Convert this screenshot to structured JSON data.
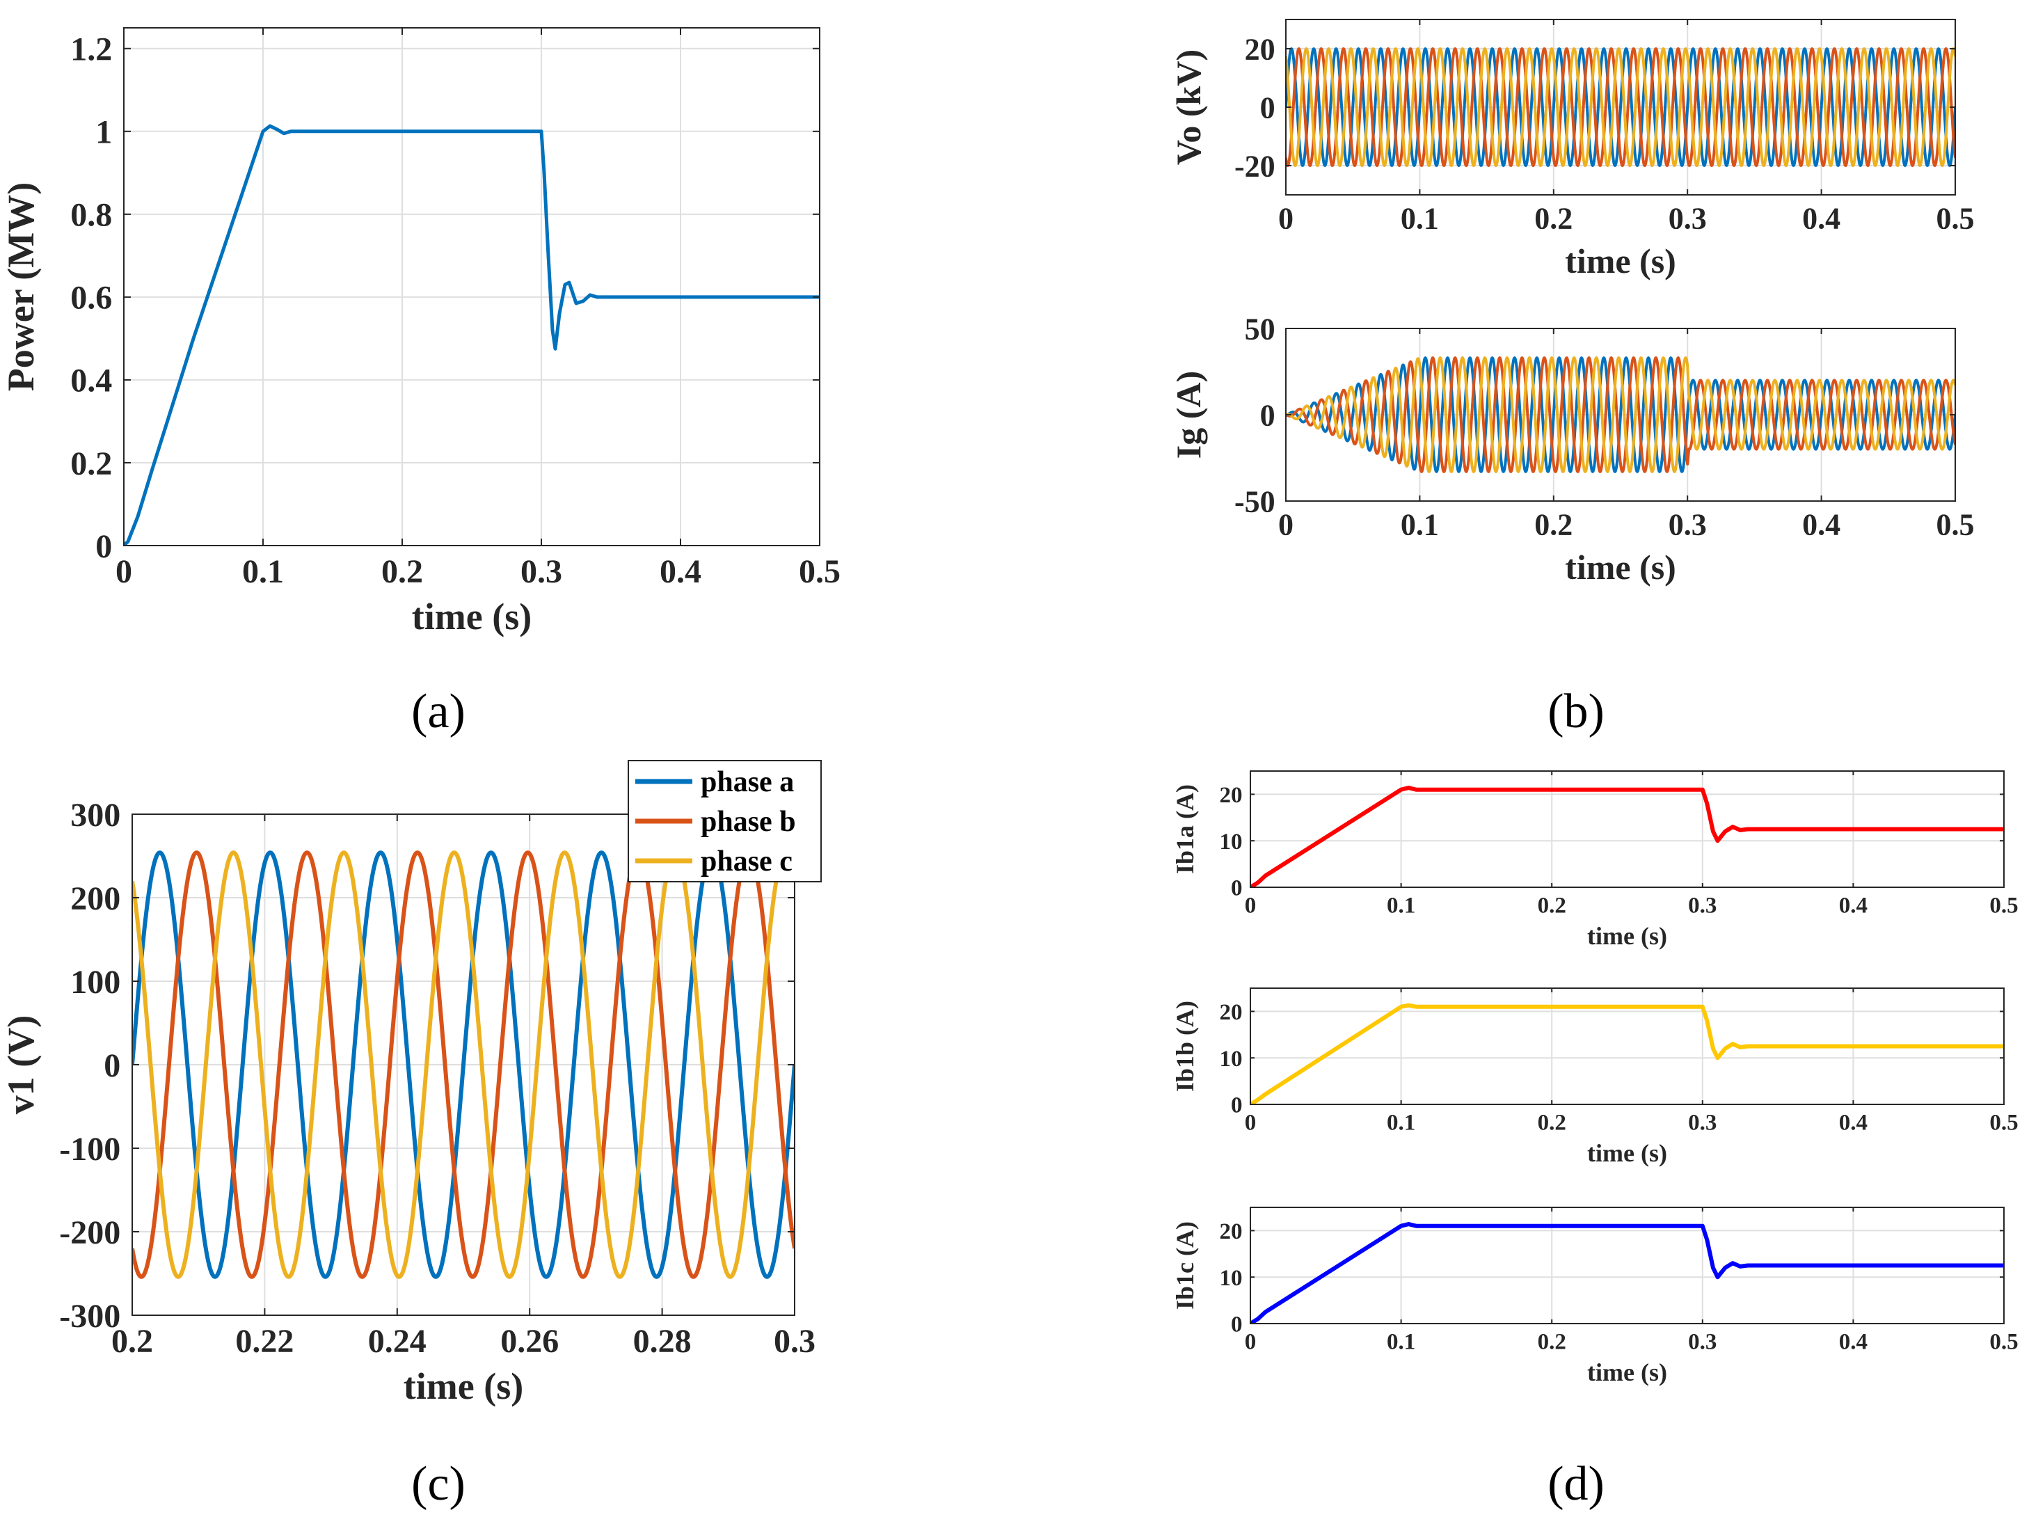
{
  "panel_labels": [
    "(a)",
    "(b)",
    "(c)",
    "(d)"
  ],
  "colors": {
    "blue": "#0072BD",
    "orange": "#D95319",
    "yellow": "#EDB120",
    "red": "#FF0000",
    "gold": "#FFC800",
    "pureblue": "#0000FF",
    "grid": "#DFDFDF",
    "axis": "#262626"
  },
  "chart_data": [
    {
      "id": "power",
      "type": "line",
      "xlabel": "time (s)",
      "ylabel": "Power (MW)",
      "xlim": [
        0,
        0.5
      ],
      "ylim": [
        0,
        1.25
      ],
      "xticks": [
        0,
        0.1,
        0.2,
        0.3,
        0.4,
        0.5
      ],
      "xtick_labels": [
        "0",
        "0.1",
        "0.2",
        "0.3",
        "0.4",
        "0.5"
      ],
      "yticks": [
        0,
        0.2,
        0.4,
        0.6,
        0.8,
        1,
        1.2
      ],
      "ytick_labels": [
        "0",
        "0.2",
        "0.4",
        "0.6",
        "0.8",
        "1",
        "1.2"
      ],
      "series": [
        {
          "name": "Power",
          "color": "#0072BD",
          "x": [
            0,
            0.003,
            0.01,
            0.02,
            0.05,
            0.1,
            0.105,
            0.11,
            0.115,
            0.12,
            0.13,
            0.2,
            0.3,
            0.302,
            0.305,
            0.308,
            0.31,
            0.313,
            0.317,
            0.32,
            0.325,
            0.33,
            0.335,
            0.34,
            0.35,
            0.5
          ],
          "values": [
            0,
            0.01,
            0.07,
            0.18,
            0.5,
            1.0,
            1.013,
            1.005,
            0.995,
            1.0,
            1.0,
            1.0,
            1.0,
            0.9,
            0.7,
            0.52,
            0.475,
            0.56,
            0.63,
            0.635,
            0.585,
            0.59,
            0.605,
            0.6,
            0.6,
            0.6
          ]
        }
      ]
    },
    {
      "id": "vo",
      "type": "line",
      "xlabel": "time (s)",
      "ylabel": "Vo (kV)",
      "xlim": [
        0,
        0.5
      ],
      "ylim": [
        -30,
        30
      ],
      "xticks": [
        0,
        0.1,
        0.2,
        0.3,
        0.4,
        0.5
      ],
      "xtick_labels": [
        "0",
        "0.1",
        "0.2",
        "0.3",
        "0.4",
        "0.5"
      ],
      "yticks": [
        -20,
        0,
        20
      ],
      "ytick_labels": [
        "-20",
        "0",
        "20"
      ],
      "waveform": {
        "type": "three_phase_sine",
        "frequency_hz": 60,
        "amplitude": 20
      },
      "series": [
        {
          "name": "phase a",
          "color": "#0072BD"
        },
        {
          "name": "phase b",
          "color": "#D95319"
        },
        {
          "name": "phase c",
          "color": "#EDB120"
        }
      ]
    },
    {
      "id": "ig",
      "type": "line",
      "xlabel": "time (s)",
      "ylabel": "Ig (A)",
      "xlim": [
        0,
        0.5
      ],
      "ylim": [
        -50,
        50
      ],
      "xticks": [
        0,
        0.1,
        0.2,
        0.3,
        0.4,
        0.5
      ],
      "xtick_labels": [
        "0",
        "0.1",
        "0.2",
        "0.3",
        "0.4",
        "0.5"
      ],
      "yticks": [
        -50,
        0,
        50
      ],
      "ytick_labels": [
        "-50",
        "0",
        "50"
      ],
      "waveform": {
        "type": "three_phase_sine",
        "frequency_hz": 60,
        "envelope_t": [
          0,
          0.1,
          0.3,
          0.301,
          0.5
        ],
        "envelope_amp": [
          0,
          33,
          33,
          20,
          20
        ]
      },
      "series": [
        {
          "name": "phase a",
          "color": "#0072BD"
        },
        {
          "name": "phase b",
          "color": "#D95319"
        },
        {
          "name": "phase c",
          "color": "#EDB120"
        }
      ]
    },
    {
      "id": "v1",
      "type": "line",
      "xlabel": "time (s)",
      "ylabel": "v1 (V)",
      "xlim": [
        0.2,
        0.3
      ],
      "ylim": [
        -300,
        300
      ],
      "xticks": [
        0.2,
        0.22,
        0.24,
        0.26,
        0.28,
        0.3
      ],
      "xtick_labels": [
        "0.2",
        "0.22",
        "0.24",
        "0.26",
        "0.28",
        "0.3"
      ],
      "yticks": [
        -300,
        -200,
        -100,
        0,
        100,
        200,
        300
      ],
      "ytick_labels": [
        "-300",
        "-200",
        "-100",
        "0",
        "100",
        "200",
        "300"
      ],
      "legend": {
        "position": "top-right",
        "entries": [
          "phase a",
          "phase b",
          "phase c"
        ]
      },
      "waveform": {
        "type": "three_phase_sine",
        "frequency_hz": 60,
        "amplitude": 254
      },
      "series": [
        {
          "name": "phase a",
          "color": "#0072BD"
        },
        {
          "name": "phase b",
          "color": "#D95319"
        },
        {
          "name": "phase c",
          "color": "#EDB120"
        }
      ]
    },
    {
      "id": "ib1a",
      "type": "line",
      "xlabel": "time (s)",
      "ylabel": "Ib1a (A)",
      "xlim": [
        0,
        0.5
      ],
      "ylim": [
        0,
        25
      ],
      "xticks": [
        0,
        0.1,
        0.2,
        0.3,
        0.4,
        0.5
      ],
      "xtick_labels": [
        "0",
        "0.1",
        "0.2",
        "0.3",
        "0.4",
        "0.5"
      ],
      "yticks": [
        0,
        10,
        20
      ],
      "ytick_labels": [
        "0",
        "10",
        "20"
      ],
      "series": [
        {
          "name": "Ib1a",
          "color": "#FF0000",
          "x": [
            0,
            0.005,
            0.01,
            0.1,
            0.105,
            0.11,
            0.12,
            0.3,
            0.303,
            0.307,
            0.31,
            0.315,
            0.32,
            0.325,
            0.33,
            0.34,
            0.5
          ],
          "values": [
            0,
            1,
            2.5,
            21,
            21.4,
            21,
            21,
            21,
            18,
            12,
            10,
            12,
            13,
            12.3,
            12.5,
            12.5,
            12.5
          ]
        }
      ]
    },
    {
      "id": "ib1b",
      "type": "line",
      "xlabel": "time (s)",
      "ylabel": "Ib1b (A)",
      "xlim": [
        0,
        0.5
      ],
      "ylim": [
        0,
        25
      ],
      "xticks": [
        0,
        0.1,
        0.2,
        0.3,
        0.4,
        0.5
      ],
      "xtick_labels": [
        "0",
        "0.1",
        "0.2",
        "0.3",
        "0.4",
        "0.5"
      ],
      "yticks": [
        0,
        10,
        20
      ],
      "ytick_labels": [
        "0",
        "10",
        "20"
      ],
      "series": [
        {
          "name": "Ib1b",
          "color": "#FFC800",
          "x": [
            0,
            0.005,
            0.01,
            0.1,
            0.105,
            0.11,
            0.12,
            0.3,
            0.303,
            0.307,
            0.31,
            0.315,
            0.32,
            0.325,
            0.33,
            0.34,
            0.5
          ],
          "values": [
            0,
            1,
            2.2,
            21,
            21.3,
            21,
            21,
            21,
            18,
            12,
            10,
            12,
            13,
            12.3,
            12.5,
            12.5,
            12.5
          ]
        }
      ]
    },
    {
      "id": "ib1c",
      "type": "line",
      "xlabel": "time (s)",
      "ylabel": "Ib1c (A)",
      "xlim": [
        0,
        0.5
      ],
      "ylim": [
        0,
        25
      ],
      "xticks": [
        0,
        0.1,
        0.2,
        0.3,
        0.4,
        0.5
      ],
      "xtick_labels": [
        "0",
        "0.1",
        "0.2",
        "0.3",
        "0.4",
        "0.5"
      ],
      "yticks": [
        0,
        10,
        20
      ],
      "ytick_labels": [
        "0",
        "10",
        "20"
      ],
      "series": [
        {
          "name": "Ib1c",
          "color": "#0000FF",
          "x": [
            0,
            0.005,
            0.01,
            0.1,
            0.105,
            0.11,
            0.12,
            0.3,
            0.303,
            0.307,
            0.31,
            0.315,
            0.32,
            0.325,
            0.33,
            0.34,
            0.5
          ],
          "values": [
            0,
            1,
            2.5,
            21,
            21.4,
            21,
            21,
            21,
            18,
            12,
            10,
            12,
            13,
            12.3,
            12.5,
            12.5,
            12.5
          ]
        }
      ]
    }
  ]
}
